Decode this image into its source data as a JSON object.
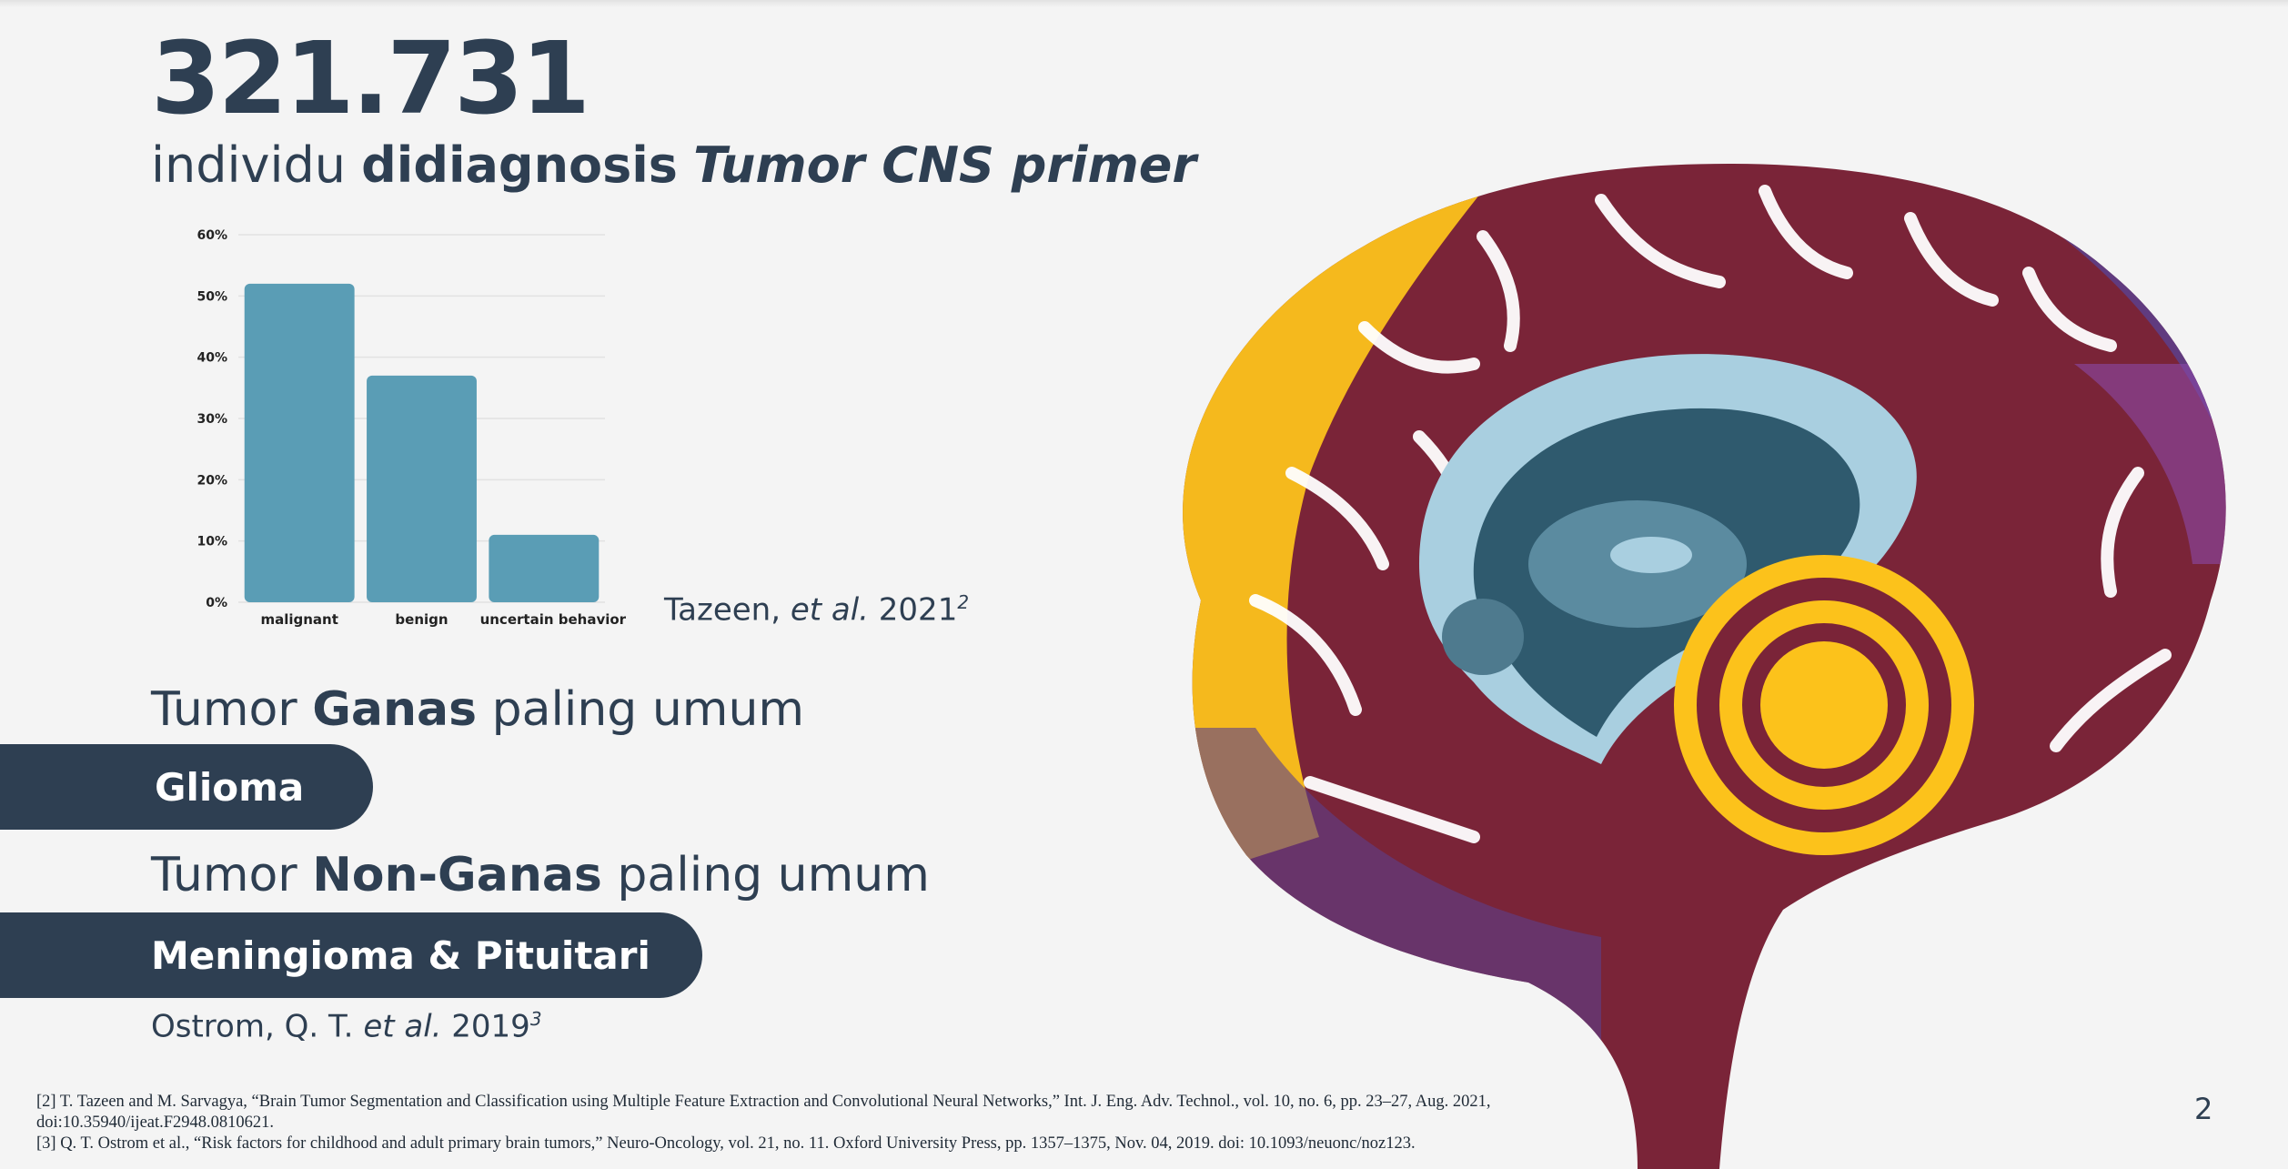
{
  "slide": {
    "big_number": "321.731",
    "headline": {
      "word1": "individu",
      "word2": "didiagnosis",
      "word3": "Tumor CNS primer"
    },
    "chart_citation": {
      "author": "Tazeen, ",
      "etal": "et al.",
      "year": " 2021",
      "ref": "2"
    },
    "malignant": {
      "prefix": "Tumor ",
      "bold": "Ganas",
      "suffix": " paling umum",
      "pill": "Glioma"
    },
    "nonmalignant": {
      "prefix": "Tumor ",
      "bold": "Non-Ganas",
      "suffix": " paling umum",
      "pill": "Meningioma & Pituitari"
    },
    "bottom_citation": {
      "author": "Ostrom, Q. T. ",
      "etal": "et al.",
      "year": " 2019",
      "ref": "3"
    },
    "references": [
      "[2] T. Tazeen and M. Sarvagya, “Brain Tumor Segmentation and Classification using Multiple Feature Extraction and Convolutional Neural Networks,” Int. J. Eng. Adv. Technol., vol. 10, no. 6, pp. 23–27, Aug. 2021, doi:10.35940/ijeat.F2948.0810621.",
      "[3] Q. T. Ostrom et al., “Risk factors for childhood and adult primary brain tumors,” Neuro-Oncology, vol. 21, no. 11. Oxford University Press, pp. 1357–1375, Nov. 04, 2019. doi: 10.1093/neuonc/noz123."
    ],
    "page_number": "2"
  },
  "chart_data": {
    "type": "bar",
    "categories": [
      "malignant",
      "benign",
      "uncertain behavior"
    ],
    "values": [
      52,
      37,
      11
    ],
    "y_ticks": [
      "0%",
      "10%",
      "20%",
      "30%",
      "40%",
      "50%",
      "60%"
    ],
    "ylim": [
      0,
      60
    ],
    "bar_color": "#5a9db5",
    "grid": true
  },
  "colors": {
    "navy": "#2e3f52",
    "brain_yellow": "#fcc21b",
    "brain_maroon": "#7a2438",
    "brain_purple": "#5c3f8c",
    "ventricle_blue": "#a9cfe0",
    "ventricle_dark": "#2f5a6e"
  }
}
